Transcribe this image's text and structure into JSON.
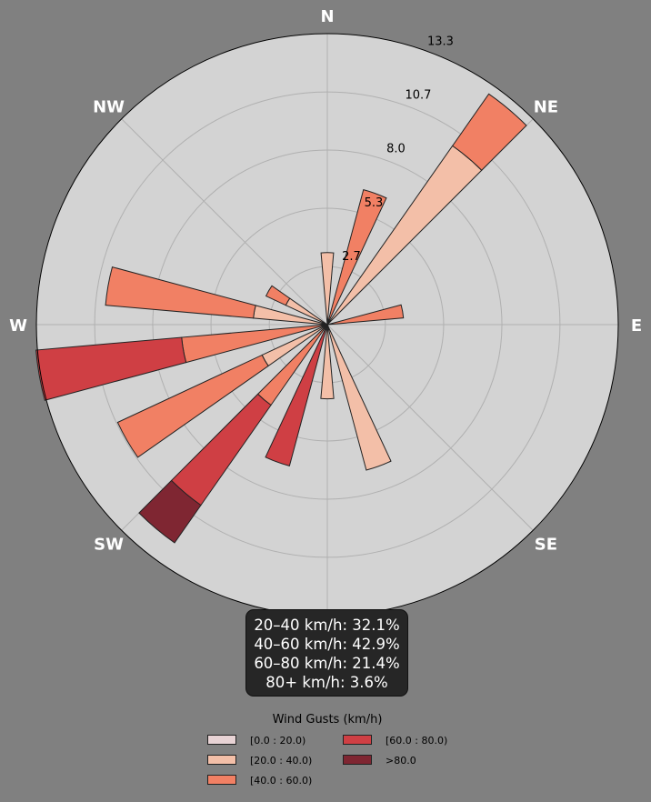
{
  "chart_data": {
    "type": "windrose",
    "radial_ticks": [
      "2.7",
      "5.3",
      "8.0",
      "10.7",
      "13.3"
    ],
    "radial_tick_values": [
      2.66,
      5.33,
      8.0,
      10.66,
      13.33
    ],
    "rmax": 13.33,
    "directions": [
      {
        "label": "N",
        "angle": 0
      },
      {
        "label": "NE",
        "angle": 45
      },
      {
        "label": "E",
        "angle": 90
      },
      {
        "label": "SE",
        "angle": 135
      },
      {
        "label": "SW",
        "angle": 225
      },
      {
        "label": "W",
        "angle": 270
      },
      {
        "label": "NW",
        "angle": 315
      }
    ],
    "sector_width_deg": 10,
    "bins": [
      "[0.0 : 20.0)",
      "[20.0 : 40.0)",
      "[40.0 : 60.0)",
      "[60.0 : 80.0)",
      ">80.0"
    ],
    "bin_colors": [
      "#e8d3d5",
      "#f3bfa8",
      "#f18064",
      "#cf3f44",
      "#7f2632"
    ],
    "sectors": [
      {
        "angle": 0,
        "cumulative": [
          0,
          3.3,
          3.3,
          3.3,
          3.3
        ]
      },
      {
        "angle": 20,
        "cumulative": [
          0,
          0,
          6.4,
          6.4,
          6.4
        ]
      },
      {
        "angle": 40,
        "cumulative": [
          0,
          10.0,
          12.9,
          12.9,
          12.9
        ]
      },
      {
        "angle": 80,
        "cumulative": [
          0,
          0,
          3.5,
          3.5,
          3.5
        ]
      },
      {
        "angle": 160,
        "cumulative": [
          0,
          6.9,
          6.9,
          6.9,
          6.9
        ]
      },
      {
        "angle": 180,
        "cumulative": [
          0,
          3.4,
          3.4,
          3.4,
          3.4
        ]
      },
      {
        "angle": 200,
        "cumulative": [
          0,
          0,
          0,
          6.7,
          6.7
        ]
      },
      {
        "angle": 220,
        "cumulative": [
          0,
          0,
          4.5,
          10.1,
          12.2
        ]
      },
      {
        "angle": 240,
        "cumulative": [
          0,
          3.3,
          10.6,
          10.6,
          10.6
        ]
      },
      {
        "angle": 260,
        "cumulative": [
          0,
          0,
          6.7,
          13.4,
          13.4
        ]
      },
      {
        "angle": 280,
        "cumulative": [
          0,
          3.4,
          10.2,
          10.2,
          10.2
        ]
      },
      {
        "angle": 300,
        "cumulative": [
          0,
          2.1,
          3.1,
          3.1,
          3.1
        ]
      }
    ]
  },
  "summary": {
    "line1": "20–40 km/h: 32.1%",
    "line2": "40–60 km/h: 42.9%",
    "line3": "60–80 km/h: 21.4%",
    "line4": "80+ km/h: 3.6%"
  },
  "legend": {
    "title": "Wind Gusts (km/h)",
    "items": [
      "[0.0 : 20.0)",
      "[20.0 : 40.0)",
      "[40.0 : 60.0)",
      "[60.0 : 80.0)",
      ">80.0"
    ]
  },
  "colors": {
    "page_background": "#808080",
    "plot_background": "#d3d3d3",
    "grid": "#b0b0b0",
    "summary_background": "#262626"
  }
}
